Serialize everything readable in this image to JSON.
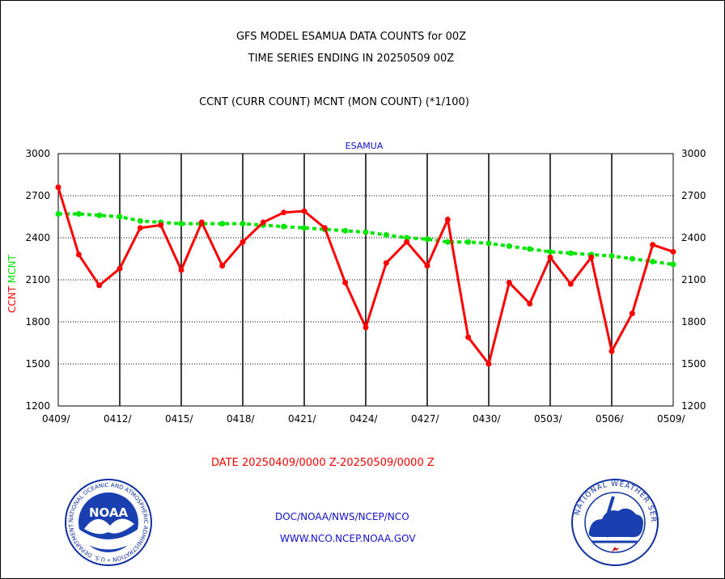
{
  "header": {
    "line1": "GFS MODEL ESAMUA DATA COUNTS for 00Z",
    "line2": "TIME SERIES ENDING IN 20250509 00Z",
    "line3": "CCNT (CURR COUNT) MCNT (MON COUNT) (*1/100)"
  },
  "date_range": "DATE 20250409/0000 Z-20250509/0000 Z",
  "footer": {
    "line1": "DOC/NOAA/NWS/NCEP/NCO",
    "line2": "WWW.NCO.NCEP.NOAA.GOV"
  },
  "logos": {
    "left": "NOAA",
    "left_ring": "NATIONAL OCEANIC AND ATMOSPHERIC ADMINISTRATION • U.S. DEPARTMENT OF COMMERCE",
    "right_ring": "NATIONAL WEATHER SERVICE"
  },
  "colors": {
    "ccnt": "#ff0000",
    "mcnt": "#00e600",
    "station_label": "#1010d0"
  },
  "chart_data": {
    "type": "line",
    "title": "ESAMUA",
    "ylabel_ccnt": "CCNT",
    "ylabel_mcnt": "MCNT",
    "ylim": [
      1200,
      3000
    ],
    "yticks": [
      "3000",
      "2700",
      "2400",
      "2100",
      "1800",
      "1500",
      "1200"
    ],
    "xticks": [
      "0409/",
      "0412/",
      "0415/",
      "0418/",
      "0421/",
      "0424/",
      "0427/",
      "0430/",
      "0503/",
      "0506/",
      "0509/"
    ],
    "grid": true,
    "x": [
      "0409",
      "0410",
      "0411",
      "0412",
      "0413",
      "0414",
      "0415",
      "0416",
      "0417",
      "0418",
      "0419",
      "0420",
      "0421",
      "0422",
      "0423",
      "0424",
      "0425",
      "0426",
      "0427",
      "0428",
      "0429",
      "0430",
      "0501",
      "0502",
      "0503",
      "0504",
      "0505",
      "0506",
      "0507",
      "0508",
      "0509"
    ],
    "series": [
      {
        "name": "CCNT",
        "values": [
          2760,
          2280,
          2060,
          2180,
          2470,
          2490,
          2170,
          2510,
          2200,
          2370,
          2510,
          2580,
          2590,
          2470,
          2080,
          1760,
          2220,
          2370,
          2200,
          2530,
          1690,
          1500,
          2080,
          1930,
          2260,
          2070,
          2260,
          1590,
          1860,
          2350,
          2300
        ]
      },
      {
        "name": "MCNT",
        "values": [
          2570,
          2570,
          2560,
          2550,
          2520,
          2510,
          2500,
          2500,
          2500,
          2500,
          2490,
          2480,
          2470,
          2460,
          2450,
          2440,
          2420,
          2400,
          2390,
          2370,
          2370,
          2360,
          2340,
          2320,
          2300,
          2290,
          2280,
          2270,
          2250,
          2230,
          2210
        ]
      }
    ]
  }
}
